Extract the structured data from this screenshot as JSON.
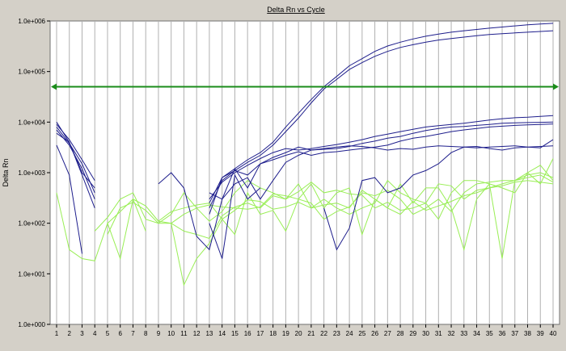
{
  "chart_data": {
    "type": "line",
    "title": "Delta Rn vs Cycle",
    "xlabel": "",
    "ylabel": "Delta Rn",
    "y_scale": "log",
    "ylim": [
      1,
      1000000
    ],
    "xlim": [
      1,
      40
    ],
    "x": [
      1,
      2,
      3,
      4,
      5,
      6,
      7,
      8,
      9,
      10,
      11,
      12,
      13,
      14,
      15,
      16,
      17,
      18,
      19,
      20,
      21,
      22,
      23,
      24,
      25,
      26,
      27,
      28,
      29,
      30,
      31,
      32,
      33,
      34,
      35,
      36,
      37,
      38,
      39,
      40
    ],
    "y_ticks": [
      "1.0e+000",
      "1.0e+001",
      "1.0e+002",
      "1.0e+003",
      "1.0e+004",
      "1.0e+005",
      "1.0e+006"
    ],
    "grid": "vertical",
    "legend": "none",
    "threshold": 50000,
    "colors": {
      "background": "#d4d0c8",
      "plot_area": "#ffffff",
      "grid": "#b0b0b0",
      "amplification": "#1e1e8c",
      "background_wells": "#99ee55",
      "threshold": "#1a8c1a"
    },
    "series": [
      {
        "group": "amplification",
        "values": [
          10000,
          4000,
          1000,
          500,
          null,
          null,
          null,
          null,
          null,
          null,
          null,
          null,
          250,
          800,
          1200,
          1800,
          2500,
          4000,
          8000,
          15000,
          28000,
          50000,
          80000,
          130000,
          180000,
          250000,
          320000,
          380000,
          440000,
          500000,
          550000,
          600000,
          640000,
          680000,
          720000,
          760000,
          800000,
          840000,
          870000,
          900000
        ]
      },
      {
        "group": "amplification",
        "values": [
          9000,
          4500,
          1800,
          700,
          null,
          null,
          null,
          null,
          null,
          null,
          null,
          null,
          200,
          700,
          1100,
          1600,
          2200,
          3500,
          6500,
          12000,
          24000,
          45000,
          70000,
          110000,
          150000,
          200000,
          250000,
          300000,
          340000,
          380000,
          420000,
          450000,
          480000,
          510000,
          540000,
          560000,
          580000,
          600000,
          620000,
          640000
        ]
      },
      {
        "group": "amplification",
        "values": [
          8000,
          3800,
          1500,
          400,
          null,
          null,
          null,
          null,
          null,
          null,
          null,
          null,
          300,
          650,
          1000,
          1400,
          1900,
          2500,
          3000,
          2800,
          3000,
          3300,
          3600,
          4000,
          4500,
          5200,
          5800,
          6500,
          7200,
          8000,
          8500,
          9000,
          9500,
          10200,
          11000,
          11700,
          12200,
          12500,
          13000,
          13500
        ]
      },
      {
        "group": "amplification",
        "values": [
          7000,
          3500,
          1200,
          300,
          null,
          null,
          null,
          null,
          null,
          null,
          null,
          null,
          150,
          800,
          1100,
          900,
          1500,
          2000,
          2500,
          3200,
          2800,
          2900,
          3000,
          3300,
          3800,
          4200,
          4800,
          5200,
          6000,
          6800,
          7500,
          8000,
          8200,
          8600,
          9000,
          9500,
          9700,
          9800,
          9900,
          10000
        ]
      },
      {
        "group": "amplification",
        "values": [
          6000,
          4000,
          900,
          200,
          null,
          null,
          null,
          null,
          null,
          null,
          null,
          null,
          400,
          300,
          1200,
          500,
          1500,
          1800,
          2200,
          2600,
          2200,
          2500,
          2600,
          2800,
          3000,
          3200,
          3500,
          4200,
          4800,
          5200,
          5800,
          6500,
          7000,
          7500,
          8000,
          8300,
          8600,
          8800,
          9000,
          9200
        ]
      },
      {
        "group": "amplification",
        "values": [
          3500,
          900,
          25,
          null,
          null,
          null,
          null,
          null,
          600,
          1000,
          500,
          55,
          30,
          300,
          600,
          800,
          300,
          700,
          1600,
          2200,
          2800,
          3000,
          3200,
          3400,
          3300,
          3100,
          2800,
          3000,
          2900,
          3200,
          3400,
          3300,
          3200,
          3100,
          3200,
          3300,
          3400,
          3200,
          3100,
          4500
        ]
      },
      {
        "group": "amplification",
        "values": [
          null,
          null,
          null,
          null,
          null,
          null,
          null,
          null,
          null,
          null,
          null,
          null,
          100,
          20,
          900,
          300,
          500,
          null,
          null,
          null,
          null,
          200,
          30,
          80,
          700,
          800,
          400,
          500,
          900,
          1100,
          1500,
          2500,
          3200,
          3300,
          3000,
          2800,
          3100,
          3200,
          3300,
          3400
        ]
      },
      {
        "group": "background",
        "values": [
          400,
          30,
          20,
          18,
          100,
          20,
          300,
          70,
          null,
          100,
          6,
          20,
          40,
          120,
          60,
          400,
          150,
          180,
          70,
          300,
          600,
          200,
          400,
          500,
          60,
          300,
          200,
          600,
          250,
          500,
          500,
          200,
          30,
          300,
          600,
          20,
          700,
          1000,
          600,
          1900
        ]
      },
      {
        "group": "background",
        "values": [
          null,
          null,
          null,
          70,
          130,
          300,
          400,
          120,
          100,
          150,
          400,
          200,
          110,
          170,
          400,
          700,
          500,
          400,
          300,
          600,
          200,
          300,
          200,
          150,
          200,
          250,
          700,
          400,
          300,
          250,
          120,
          400,
          700,
          700,
          600,
          500,
          400,
          1000,
          1400,
          700
        ]
      },
      {
        "group": "background",
        "values": [
          null,
          null,
          null,
          null,
          100,
          170,
          300,
          220,
          110,
          100,
          70,
          60,
          50,
          140,
          210,
          250,
          200,
          350,
          300,
          420,
          650,
          400,
          450,
          380,
          360,
          200,
          260,
          180,
          200,
          250,
          600,
          550,
          300,
          450,
          500,
          550,
          650,
          700,
          650,
          600
        ]
      },
      {
        "group": "background",
        "values": [
          null,
          null,
          null,
          null,
          60,
          200,
          260,
          180,
          100,
          100,
          150,
          200,
          230,
          210,
          200,
          190,
          210,
          380,
          350,
          300,
          250,
          120,
          170,
          210,
          400,
          350,
          450,
          300,
          150,
          200,
          300,
          170,
          400,
          600,
          650,
          700,
          700,
          800,
          900,
          650
        ]
      },
      {
        "group": "background",
        "values": [
          null,
          null,
          null,
          null,
          null,
          null,
          null,
          null,
          110,
          170,
          200,
          230,
          250,
          120,
          180,
          290,
          270,
          190,
          210,
          260,
          200,
          230,
          250,
          200,
          450,
          300,
          200,
          150,
          270,
          180,
          220,
          270,
          350,
          400,
          500,
          600,
          700,
          900,
          1000,
          800
        ]
      }
    ]
  }
}
